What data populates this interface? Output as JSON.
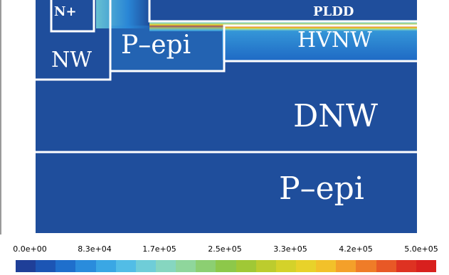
{
  "colors": {
    "background_field": "#1f4e9c",
    "boundary": "#ffffff"
  },
  "regions": {
    "nplus": "N+",
    "nw": "NW",
    "pepi_top": "P–epi",
    "pldd": "PLDD",
    "hvnw": "HVNW",
    "dnw": "DNW",
    "pepi_bottom": "P–epi"
  },
  "colorbar": {
    "tick_labels": [
      "0.0e+00",
      "8.3e+04",
      "1.7e+05",
      "2.5e+05",
      "3.3e+05",
      "4.2e+05",
      "5.0e+05"
    ],
    "min": 0,
    "max": 500000,
    "colors": [
      "#1f3f98",
      "#1c55b4",
      "#1f6fcc",
      "#2a8cdc",
      "#3aa7e4",
      "#52bde6",
      "#6fcdd8",
      "#86d6c0",
      "#8fd69c",
      "#8ccf72",
      "#8dc84a",
      "#a0c836",
      "#bccc2e",
      "#d4d22a",
      "#e8d22a",
      "#f2c12a",
      "#f4a02a",
      "#ef7c28",
      "#e85826",
      "#de3222",
      "#d8201e"
    ]
  }
}
